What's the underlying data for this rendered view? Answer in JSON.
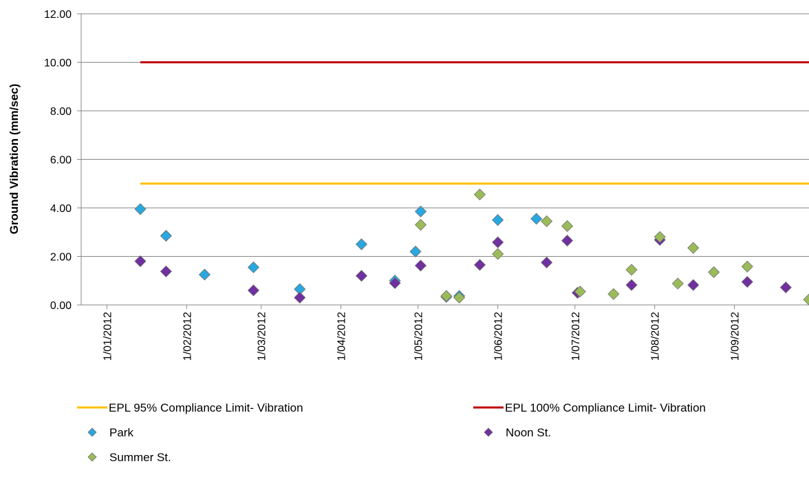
{
  "chart_data": {
    "type": "scatter",
    "ylabel": "Ground Vibration (mm/sec)",
    "xlabel": "",
    "ylim": [
      0,
      12
    ],
    "yticks": [
      "0.00",
      "2.00",
      "4.00",
      "6.00",
      "8.00",
      "10.00",
      "12.00"
    ],
    "ytick_values": [
      0,
      2,
      4,
      6,
      8,
      10,
      12
    ],
    "xlim": [
      "2011-12-22",
      "2012-09-30"
    ],
    "xticks": [
      "1/01/2012",
      "1/02/2012",
      "1/03/2012",
      "1/04/2012",
      "1/05/2012",
      "1/06/2012",
      "1/07/2012",
      "1/08/2012",
      "1/09/2012"
    ],
    "xtick_dates": [
      "2012-01-01",
      "2012-02-01",
      "2012-03-01",
      "2012-04-01",
      "2012-05-01",
      "2012-06-01",
      "2012-07-01",
      "2012-08-01",
      "2012-09-01"
    ],
    "grid": "horizontal",
    "legend_position": "bottom",
    "lines": [
      {
        "name": "EPL 95% Compliance Limit- Vibration",
        "color": "#FFC000",
        "x": [
          "2012-01-14",
          "2012-09-30"
        ],
        "y": [
          5.0,
          5.0
        ]
      },
      {
        "name": "EPL 100% Compliance Limit- Vibration",
        "color": "#C00000",
        "x": [
          "2012-01-14",
          "2012-09-30"
        ],
        "y": [
          10.0,
          10.0
        ]
      }
    ],
    "series": [
      {
        "name": "Park",
        "color": "#29A8E0",
        "marker": "diamond",
        "x": [
          "2012-01-14",
          "2012-01-24",
          "2012-02-08",
          "2012-02-27",
          "2012-03-16",
          "2012-04-09",
          "2012-04-22",
          "2012-04-30",
          "2012-05-02",
          "2012-05-12",
          "2012-05-17",
          "2012-06-01",
          "2012-06-16"
        ],
        "y": [
          3.95,
          2.85,
          1.25,
          1.55,
          0.65,
          2.5,
          1.0,
          2.2,
          3.85,
          0.33,
          0.37,
          3.5,
          3.55
        ]
      },
      {
        "name": "Noon St.",
        "color": "#7030A0",
        "marker": "diamond",
        "x": [
          "2012-01-14",
          "2012-01-24",
          "2012-02-27",
          "2012-03-16",
          "2012-04-09",
          "2012-04-22",
          "2012-05-02",
          "2012-05-25",
          "2012-06-01",
          "2012-06-20",
          "2012-06-28",
          "2012-07-02",
          "2012-07-23",
          "2012-08-03",
          "2012-08-16",
          "2012-09-06",
          "2012-09-21"
        ],
        "y": [
          1.8,
          1.38,
          0.6,
          0.3,
          1.2,
          0.9,
          1.62,
          1.65,
          2.58,
          1.75,
          2.65,
          0.5,
          0.82,
          2.68,
          0.82,
          0.95,
          0.72
        ]
      },
      {
        "name": "Summer St.",
        "color": "#9BBB59",
        "marker": "diamond",
        "x": [
          "2012-05-02",
          "2012-05-12",
          "2012-05-17",
          "2012-05-25",
          "2012-06-01",
          "2012-06-20",
          "2012-06-28",
          "2012-07-03",
          "2012-07-16",
          "2012-07-23",
          "2012-08-03",
          "2012-08-10",
          "2012-08-16",
          "2012-08-24",
          "2012-09-06",
          "2012-09-30"
        ],
        "y": [
          3.3,
          0.37,
          0.3,
          4.55,
          2.1,
          3.45,
          3.25,
          0.55,
          0.45,
          1.45,
          2.8,
          0.88,
          2.35,
          1.35,
          1.58,
          0.22
        ]
      }
    ],
    "legend": [
      {
        "label": "EPL 95% Compliance Limit- Vibration",
        "kind": "line",
        "color": "#FFC000"
      },
      {
        "label": "EPL 100% Compliance Limit- Vibration",
        "kind": "line",
        "color": "#C00000"
      },
      {
        "label": "Park",
        "kind": "marker",
        "color": "#29A8E0"
      },
      {
        "label": "Noon St.",
        "kind": "marker",
        "color": "#7030A0"
      },
      {
        "label": "Summer St.",
        "kind": "marker",
        "color": "#9BBB59"
      }
    ]
  }
}
